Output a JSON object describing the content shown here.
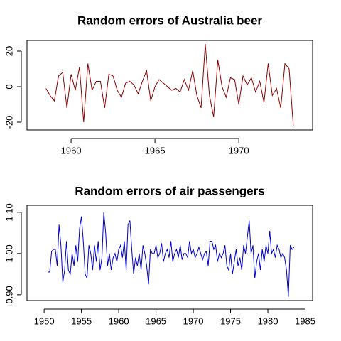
{
  "chart_data": [
    {
      "type": "line",
      "title": "Random errors of Australia beer",
      "color": "#8b0000",
      "x": [
        1958.5,
        1958.75,
        1959,
        1959.25,
        1959.5,
        1959.75,
        1960,
        1960.25,
        1960.5,
        1960.75,
        1961,
        1961.25,
        1961.5,
        1961.75,
        1962,
        1962.25,
        1962.5,
        1962.75,
        1963,
        1963.25,
        1963.5,
        1963.75,
        1964,
        1964.25,
        1964.5,
        1964.75,
        1965,
        1965.25,
        1965.5,
        1965.75,
        1966,
        1966.25,
        1966.5,
        1966.75,
        1967,
        1967.25,
        1967.5,
        1967.75,
        1968,
        1968.25,
        1968.5,
        1968.75,
        1969,
        1969.25,
        1969.5,
        1969.75,
        1970,
        1970.25,
        1970.5,
        1970.75,
        1971,
        1971.25,
        1971.5,
        1971.75,
        1972,
        1972.25,
        1972.5,
        1972.75,
        1973,
        1973.25
      ],
      "values": [
        -1,
        -5,
        -8,
        6,
        8,
        -12,
        7,
        -2,
        11,
        -20,
        13,
        -2,
        3,
        3,
        -12,
        7,
        6,
        -2,
        -6,
        2,
        3,
        1,
        -4,
        3,
        9,
        -8,
        0,
        4,
        2,
        0,
        -2,
        -1,
        -3,
        4,
        -2,
        9,
        -5,
        -12,
        24,
        -5,
        -17,
        15,
        0,
        -6,
        5,
        4,
        -10,
        6,
        1,
        5,
        -3,
        3,
        -9,
        13,
        -5,
        -1,
        -12,
        13,
        10,
        -22
      ],
      "xlim": [
        1957.37,
        1974.4
      ],
      "ylim": [
        -24.4,
        26
      ],
      "xticks": [
        1960,
        1965,
        1970
      ],
      "yticks": [
        -20,
        0,
        20
      ]
    },
    {
      "type": "line",
      "title": "Random errors of air passengers",
      "color": "#0000cd",
      "x": [
        1950.5,
        1950.75,
        1951,
        1951.25,
        1951.5,
        1951.75,
        1952,
        1952.25,
        1952.5,
        1952.75,
        1953,
        1953.25,
        1953.5,
        1953.75,
        1954,
        1954.25,
        1954.5,
        1954.75,
        1955,
        1955.25,
        1955.5,
        1955.75,
        1956,
        1956.25,
        1956.5,
        1956.75,
        1957,
        1957.25,
        1957.5,
        1957.75,
        1958,
        1958.25,
        1958.5,
        1958.75,
        1959,
        1959.25,
        1959.5,
        1959.75,
        1960,
        1960.25,
        1960.5,
        1960.75,
        1961,
        1961.25,
        1961.5,
        1961.75,
        1962,
        1962.25,
        1962.5,
        1962.75,
        1963,
        1963.25,
        1963.5,
        1963.75,
        1964,
        1964.25,
        1964.5,
        1964.75,
        1965,
        1965.25,
        1965.5,
        1965.75,
        1966,
        1966.25,
        1966.5,
        1966.75,
        1967,
        1967.25,
        1967.5,
        1967.75,
        1968,
        1968.25,
        1968.5,
        1968.75,
        1969,
        1969.25,
        1969.5,
        1969.75,
        1970,
        1970.25,
        1970.5,
        1970.75,
        1971,
        1971.25,
        1971.5,
        1971.75,
        1972,
        1972.25,
        1972.5,
        1972.75,
        1973,
        1973.25,
        1973.5,
        1973.75,
        1974,
        1974.25,
        1974.5,
        1974.75,
        1975,
        1975.25,
        1975.5,
        1975.75,
        1976,
        1976.25,
        1976.5,
        1976.75,
        1977,
        1977.25,
        1977.5,
        1977.75,
        1978,
        1978.25,
        1978.5,
        1978.75,
        1979,
        1979.25,
        1979.5,
        1979.75,
        1980,
        1980.25,
        1980.5,
        1980.75,
        1981,
        1981.25,
        1981.5,
        1981.75,
        1982,
        1982.25,
        1982.5,
        1982.75,
        1983,
        1983.25,
        1983.5
      ],
      "values": [
        0.955,
        0.955,
        1.005,
        1.01,
        1.01,
        0.97,
        1.07,
        1.02,
        0.93,
        0.96,
        1.03,
        0.96,
        0.95,
        1.0,
        0.97,
        1.02,
        0.98,
        1.06,
        1.09,
        1.03,
        0.95,
        0.94,
        1.02,
        1.0,
        0.96,
        1.02,
        0.98,
        1.03,
        0.96,
        0.99,
        1.1,
        1.05,
        0.97,
        1.0,
        0.96,
        0.99,
        1.0,
        0.98,
        1.01,
        1.02,
        0.99,
        1.03,
        0.96,
        1.07,
        1.08,
        1.01,
        0.95,
        0.99,
        0.97,
        1.0,
        0.96,
        1.02,
        1.0,
        0.97,
        0.925,
        1.01,
        1.0,
        1.0,
        1.02,
        0.99,
        1.0,
        1.025,
        0.98,
        1.0,
        1.01,
        0.99,
        1.03,
        0.98,
        1.0,
        1.01,
        0.99,
        1.02,
        0.985,
        1.0,
        1.0,
        0.99,
        1.03,
        1.0,
        1.01,
        0.99,
        1.0,
        1.015,
        1.0,
        0.985,
        1.0,
        1.005,
        0.97,
        1.03,
        1.03,
        1.01,
        1.02,
        0.98,
        1.0,
        0.99,
        1.0,
        1.02,
        0.97,
        0.96,
        1.0,
        0.95,
        0.98,
        1.01,
        0.97,
        0.99,
        0.96,
        1.02,
        1.0,
        1.04,
        1.08,
        1.0,
        1.02,
        0.94,
        0.98,
        1.0,
        0.96,
        1.01,
        0.98,
        1.02,
        1.0,
        1.055,
        1.0,
        1.01,
        0.99,
        1.02,
        1.01,
        0.99,
        1.0,
        0.99,
        0.96,
        0.895,
        1.02,
        1.01,
        1.015
      ],
      "xlim": [
        1947.7,
        1986.0
      ],
      "ylim": [
        0.886,
        1.117
      ],
      "xticks": [
        1950,
        1955,
        1960,
        1965,
        1970,
        1975,
        1980,
        1985
      ],
      "yticks": [
        {
          "value": 0.9,
          "label": "0.90"
        },
        {
          "value": 1.0,
          "label": "1.00"
        },
        {
          "value": 1.1,
          "label": "1.10"
        }
      ]
    }
  ]
}
